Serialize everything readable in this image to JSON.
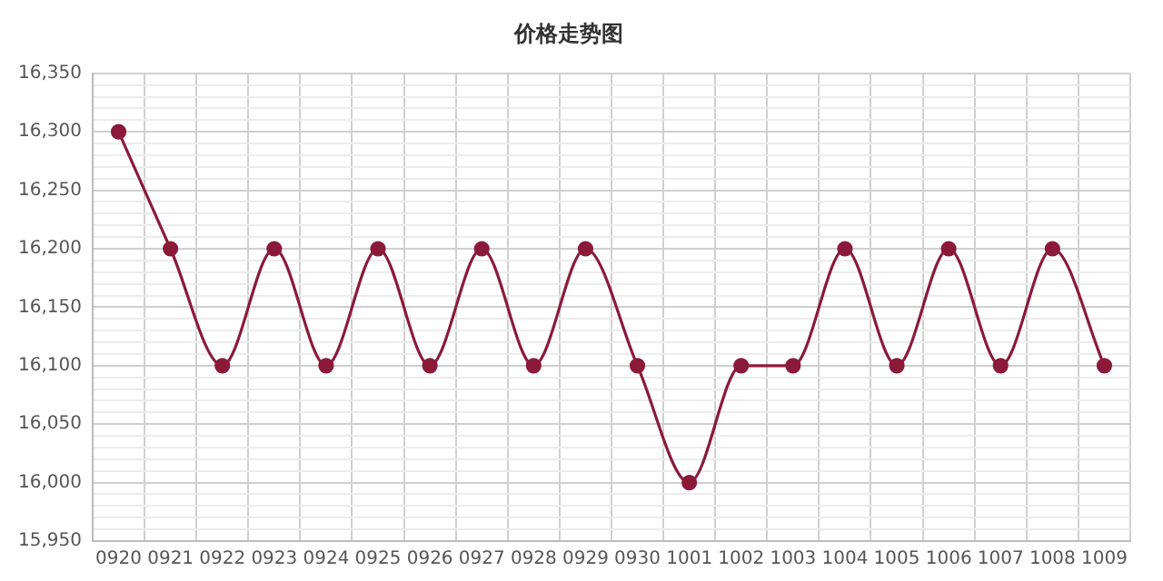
{
  "chart_data": {
    "type": "line",
    "title": "价格走势图",
    "categories": [
      "0920",
      "0921",
      "0922",
      "0923",
      "0924",
      "0925",
      "0926",
      "0927",
      "0928",
      "0929",
      "0930",
      "1001",
      "1002",
      "1003",
      "1004",
      "1005",
      "1006",
      "1007",
      "1008",
      "1009"
    ],
    "series": [
      {
        "color": "#8b1a3a",
        "values": [
          16300,
          16200,
          16100,
          16200,
          16100,
          16200,
          16100,
          16200,
          16100,
          16200,
          16100,
          16000,
          16100,
          16100,
          16200,
          16100,
          16200,
          16100,
          16200,
          16100
        ]
      }
    ],
    "ylim": [
      15950,
      16350
    ],
    "yticks": [
      {
        "value": 15950,
        "label": "15,950"
      },
      {
        "value": 15960,
        "label": null
      },
      {
        "value": 15970,
        "label": null
      },
      {
        "value": 15980,
        "label": null
      },
      {
        "value": 15990,
        "label": null
      },
      {
        "value": 16000,
        "label": "16,000"
      },
      {
        "value": 16010,
        "label": null
      },
      {
        "value": 16020,
        "label": null
      },
      {
        "value": 16030,
        "label": null
      },
      {
        "value": 16040,
        "label": null
      },
      {
        "value": 16050,
        "label": "16,050"
      },
      {
        "value": 16060,
        "label": null
      },
      {
        "value": 16070,
        "label": null
      },
      {
        "value": 16080,
        "label": null
      },
      {
        "value": 16090,
        "label": null
      },
      {
        "value": 16100,
        "label": "16,100"
      },
      {
        "value": 16110,
        "label": null
      },
      {
        "value": 16120,
        "label": null
      },
      {
        "value": 16130,
        "label": null
      },
      {
        "value": 16140,
        "label": null
      },
      {
        "value": 16150,
        "label": "16,150"
      },
      {
        "value": 16160,
        "label": null
      },
      {
        "value": 16170,
        "label": null
      },
      {
        "value": 16180,
        "label": null
      },
      {
        "value": 16190,
        "label": null
      },
      {
        "value": 16200,
        "label": "16,200"
      },
      {
        "value": 16210,
        "label": null
      },
      {
        "value": 16220,
        "label": null
      },
      {
        "value": 16230,
        "label": null
      },
      {
        "value": 16240,
        "label": null
      },
      {
        "value": 16250,
        "label": "16,250"
      },
      {
        "value": 16260,
        "label": null
      },
      {
        "value": 16270,
        "label": null
      },
      {
        "value": 16280,
        "label": null
      },
      {
        "value": 16290,
        "label": null
      },
      {
        "value": 16300,
        "label": "16,300"
      },
      {
        "value": 16310,
        "label": null
      },
      {
        "value": 16320,
        "label": null
      },
      {
        "value": 16330,
        "label": null
      },
      {
        "value": 16340,
        "label": null
      },
      {
        "value": 16350,
        "label": "16,350"
      }
    ],
    "grid": true,
    "legend": false,
    "marker": "circle",
    "line_style": "solid"
  }
}
